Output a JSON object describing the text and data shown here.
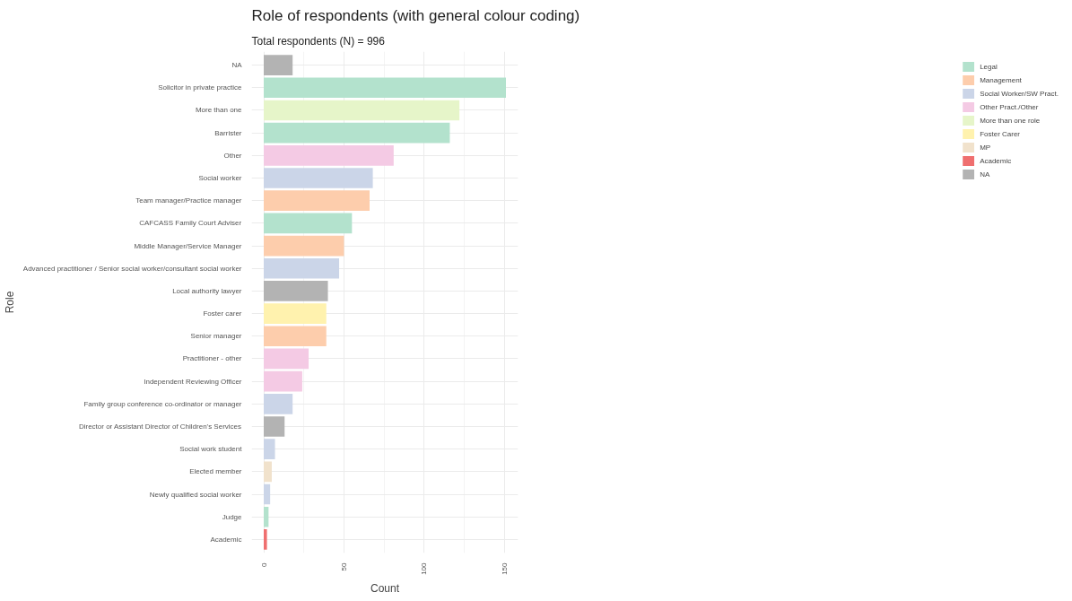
{
  "chart_data": {
    "type": "bar",
    "orientation": "horizontal",
    "title": "Role of respondents (with general colour coding)",
    "subtitle": "Total respondents (N) = 996",
    "xlabel": "Count",
    "ylabel": "Role",
    "categories": [
      "NA",
      "Solicitor in private practice",
      "More than one",
      "Barrister",
      "Other",
      "Social worker",
      "Team manager/Practice manager",
      "CAFCASS Family Court Adviser",
      "Middle Manager/Service Manager",
      "Advanced practitioner / Senior social worker/consultant social worker",
      "Local authority lawyer",
      "Foster carer",
      "Senior manager",
      "Practitioner - other",
      "Independent Reviewing Officer",
      "Family group conference co-ordinator or manager",
      "Director or Assistant Director of Children's Services",
      "Social work student",
      "Elected member",
      "Newly qualified social worker",
      "Judge",
      "Academic"
    ],
    "series": [
      {
        "name": "Legal",
        "color": "#b3e2cd",
        "values": [
          null,
          151,
          null,
          116,
          null,
          null,
          null,
          55,
          null,
          null,
          null,
          null,
          null,
          null,
          null,
          null,
          null,
          null,
          null,
          null,
          3,
          null
        ]
      },
      {
        "name": "Management",
        "color": "#fdcdac",
        "values": [
          null,
          null,
          null,
          null,
          null,
          null,
          66,
          null,
          50,
          null,
          null,
          null,
          39,
          null,
          null,
          null,
          null,
          null,
          null,
          null,
          null,
          null
        ]
      },
      {
        "name": "Social Worker/SW Pract.",
        "color": "#cbd5e8",
        "values": [
          null,
          null,
          null,
          null,
          null,
          68,
          null,
          null,
          null,
          47,
          null,
          null,
          null,
          null,
          null,
          18,
          null,
          7,
          null,
          4,
          null,
          null
        ]
      },
      {
        "name": "Other Pract./Other",
        "color": "#f4cae4",
        "values": [
          null,
          null,
          null,
          null,
          81,
          null,
          null,
          null,
          null,
          null,
          null,
          null,
          null,
          28,
          24,
          null,
          null,
          null,
          null,
          null,
          null,
          null
        ]
      },
      {
        "name": "More than one role",
        "color": "#e6f5c9",
        "values": [
          null,
          null,
          122,
          null,
          null,
          null,
          null,
          null,
          null,
          null,
          null,
          null,
          null,
          null,
          null,
          null,
          null,
          null,
          null,
          null,
          null,
          null
        ]
      },
      {
        "name": "Foster Carer",
        "color": "#fff2ae",
        "values": [
          null,
          null,
          null,
          null,
          null,
          null,
          null,
          null,
          null,
          null,
          null,
          39,
          null,
          null,
          null,
          null,
          null,
          null,
          null,
          null,
          null,
          null
        ]
      },
      {
        "name": "MP",
        "color": "#f1e2cc",
        "values": [
          null,
          null,
          null,
          null,
          null,
          null,
          null,
          null,
          null,
          null,
          null,
          null,
          null,
          null,
          null,
          null,
          null,
          null,
          5,
          null,
          null,
          null
        ]
      },
      {
        "name": "Academic",
        "color": "#ef6f6f",
        "values": [
          null,
          null,
          null,
          null,
          null,
          null,
          null,
          null,
          null,
          null,
          null,
          null,
          null,
          null,
          null,
          null,
          null,
          null,
          null,
          null,
          null,
          2
        ]
      },
      {
        "name": "NA",
        "color": "#b3b3b3",
        "values": [
          18,
          null,
          null,
          null,
          null,
          null,
          null,
          null,
          null,
          null,
          40,
          null,
          null,
          null,
          null,
          null,
          13,
          null,
          null,
          null,
          null,
          null
        ]
      }
    ],
    "xlim": [
      -7.55,
      158.55
    ],
    "xticks": [
      0,
      50,
      100,
      150
    ],
    "grid": true,
    "legend": "right"
  }
}
